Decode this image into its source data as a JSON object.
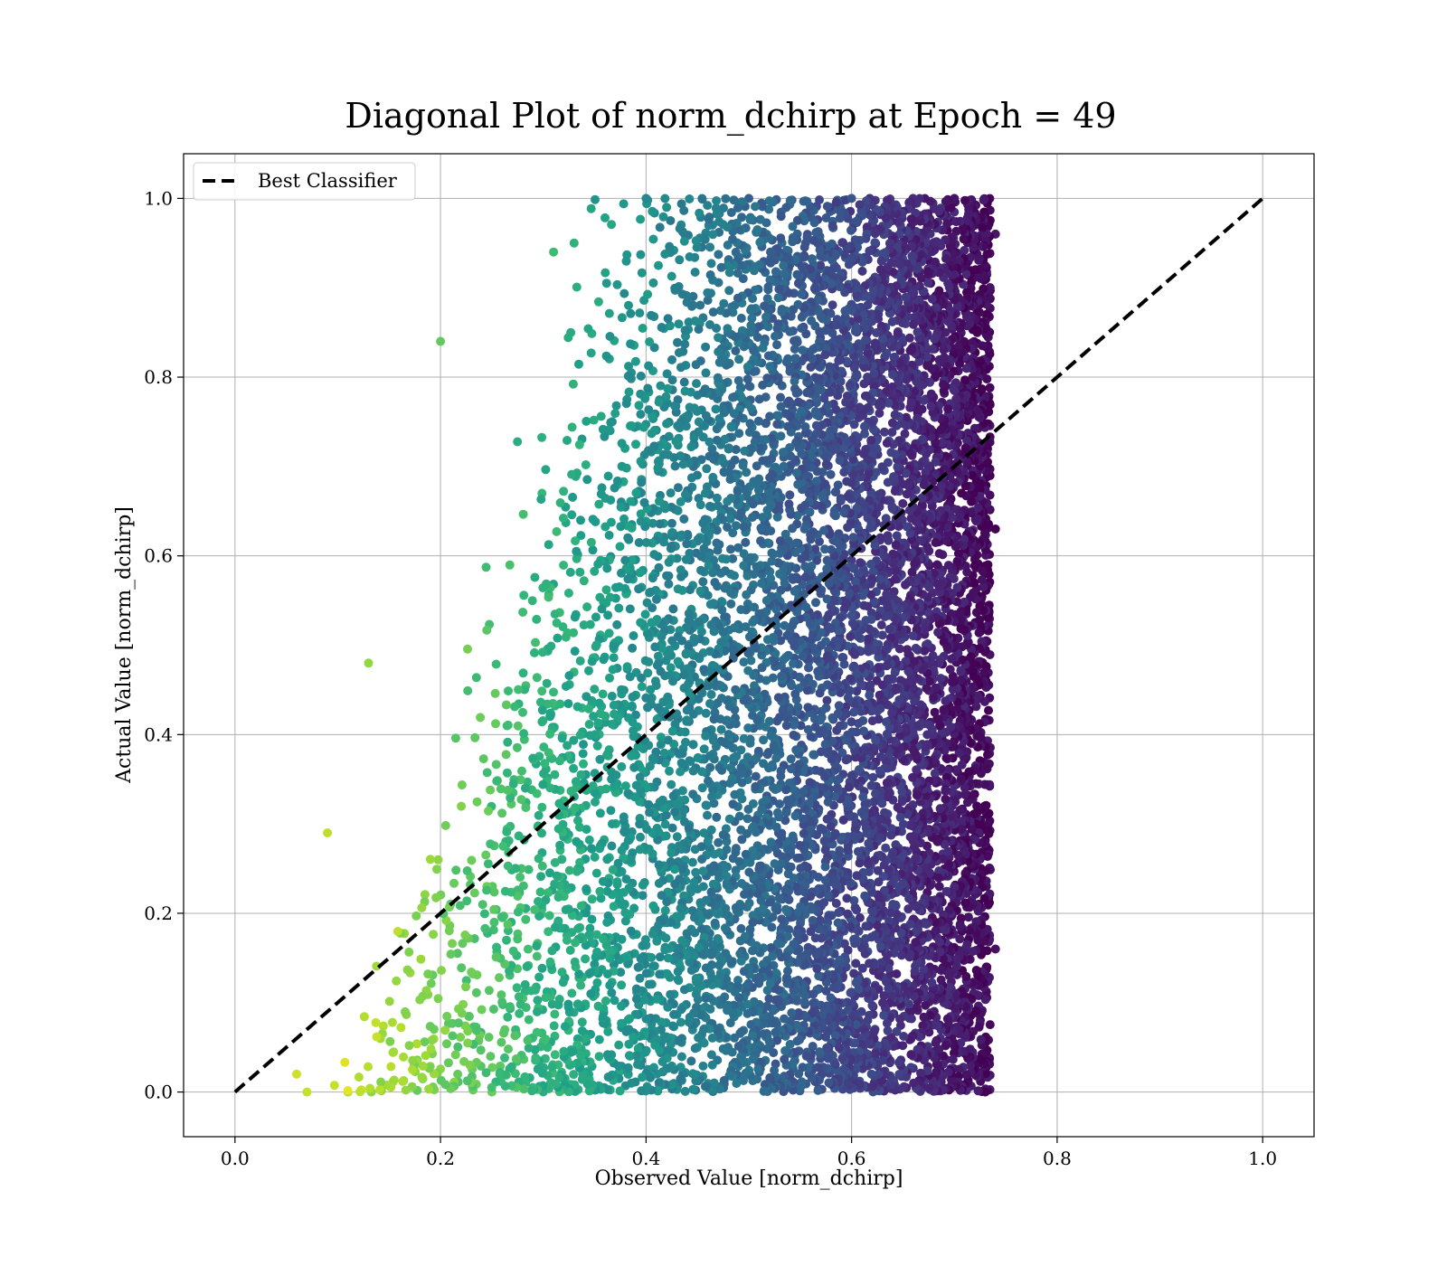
{
  "chart_data": {
    "type": "scatter",
    "title": "Diagonal Plot of norm_dchirp at Epoch = 49",
    "xlabel": "Observed Value [norm_dchirp]",
    "ylabel": "Actual Value [norm_dchirp]",
    "xlim": [
      -0.05,
      1.05
    ],
    "ylim": [
      -0.05,
      1.05
    ],
    "x_ticks": [
      "0.0",
      "0.2",
      "0.4",
      "0.6",
      "0.8",
      "1.0"
    ],
    "y_ticks": [
      "0.0",
      "0.2",
      "0.4",
      "0.6",
      "0.8",
      "1.0"
    ],
    "grid": true,
    "colormap": "viridis",
    "legend_position": "top-left",
    "series": [
      {
        "name": "Best Classifier",
        "kind": "dashed-line",
        "color": "#000000",
        "x": [
          0.0,
          1.0
        ],
        "y": [
          0.0,
          1.0
        ]
      },
      {
        "kind": "scatter",
        "color_by": "x (viridis, yellow at low x, dark purple at high x)",
        "x_range": [
          0.05,
          0.745
        ],
        "y_range": [
          0.0,
          1.0
        ],
        "description_points": [
          [
            0.2,
            0.84
          ],
          [
            0.13,
            0.48
          ],
          [
            0.09,
            0.29
          ],
          [
            0.31,
            0.94
          ],
          [
            0.33,
            0.95
          ],
          [
            0.4,
            1.0
          ],
          [
            0.42,
            0.99
          ],
          [
            0.74,
            0.96
          ],
          [
            0.74,
            0.63
          ],
          [
            0.74,
            0.16
          ],
          [
            0.73,
            0.0
          ],
          [
            0.07,
            0.0
          ],
          [
            0.06,
            0.02
          ],
          [
            0.11,
            0.0
          ],
          [
            0.25,
            0.0
          ],
          [
            0.5,
            1.0
          ],
          [
            0.6,
            1.0
          ],
          [
            0.7,
            1.0
          ]
        ]
      }
    ]
  }
}
